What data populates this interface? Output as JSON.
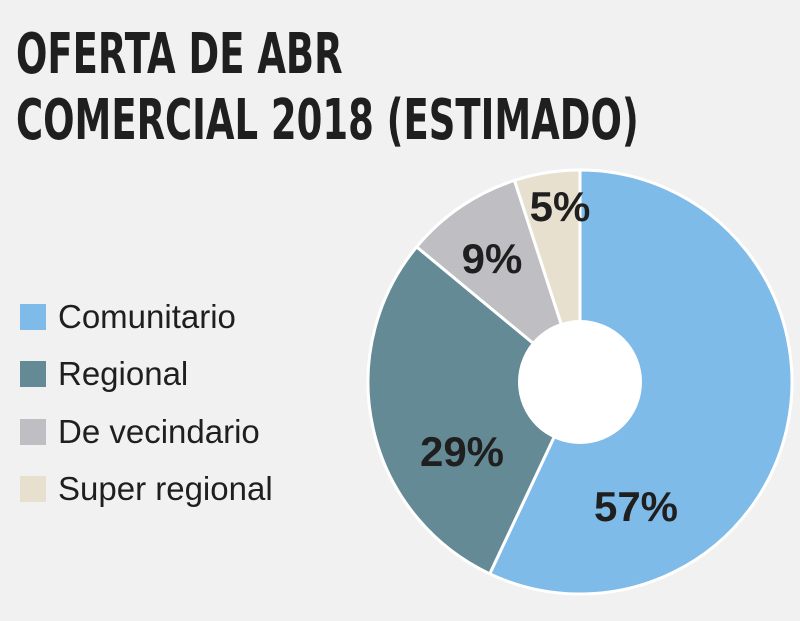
{
  "chart_data": {
    "type": "pie",
    "variant": "donut",
    "title_lines": [
      "OFERTA DE ABR",
      "COMERCIAL 2018 (ESTIMADO)"
    ],
    "categories": [
      "Comunitario",
      "Regional",
      "De vecindario",
      "Super regional"
    ],
    "values": [
      57,
      29,
      9,
      5
    ],
    "value_labels": [
      "57%",
      "29%",
      "9%",
      "5%"
    ],
    "colors": [
      "#7fbbe8",
      "#648a96",
      "#bfbfc3",
      "#e8e0cf"
    ],
    "legend_position": "left"
  }
}
